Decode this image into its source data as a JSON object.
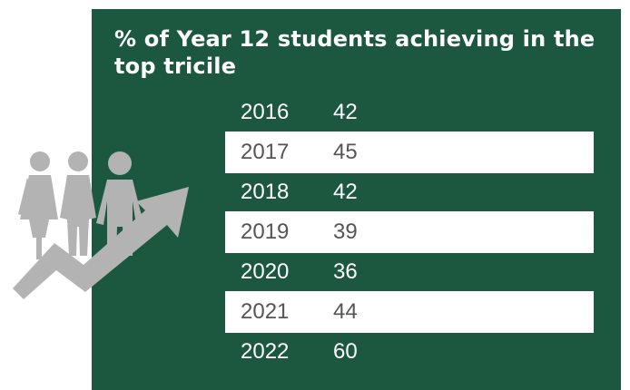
{
  "chart_data": {
    "type": "table",
    "title": "% of Year 12 students achieving in the top tricile",
    "categories": [
      "2016",
      "2017",
      "2018",
      "2019",
      "2020",
      "2021",
      "2022"
    ],
    "values": [
      42,
      45,
      42,
      39,
      36,
      44,
      60
    ]
  },
  "colors": {
    "panel": "#1c5740",
    "band": "#ffffff",
    "icon": "#b3b3b3"
  },
  "icon": "students-growth-arrow-icon"
}
